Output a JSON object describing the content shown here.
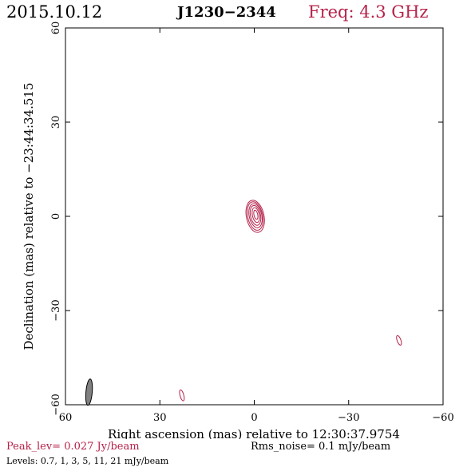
{
  "header": {
    "date": "2015.10.12",
    "source": "J1230−2344",
    "freq": "Freq: 4.3 GHz"
  },
  "footer": {
    "peak": "Peak_lev=  0.027 Jy/beam",
    "rms": "Rms_noise=  0.1 mJy/beam",
    "levels": "Levels: 0.7,    1,    3,    5,   11,   21 mJy/beam"
  },
  "colors": {
    "contour": "#b5224a",
    "beam": "#808080",
    "axes": "#000000"
  },
  "chart_data": {
    "type": "contour",
    "title": "J1230−2344",
    "xlabel": "Right ascension (mas) relative to 12:30:37.9754",
    "ylabel": "Declination (mas) relative to −23:44:34.515",
    "xlim": [
      60,
      -60
    ],
    "ylim": [
      -60,
      60
    ],
    "xticks": [
      60,
      30,
      0,
      -30,
      -60
    ],
    "yticks": [
      -60,
      -30,
      0,
      30,
      60
    ],
    "xtick_labels": [
      "60",
      "30",
      "0",
      "−30",
      "−60"
    ],
    "ytick_labels": [
      "−60",
      "−30",
      "0",
      "30",
      "60"
    ],
    "peak_jy_per_beam": 0.027,
    "rms_mjy_per_beam": 0.1,
    "levels_mjy_per_beam": [
      0.7,
      1,
      3,
      5,
      11,
      21
    ],
    "components": [
      {
        "name": "core",
        "x": -0.3,
        "y": 0.0,
        "contours": [
          {
            "level": 0.7,
            "rx": 2.8,
            "ry": 5.2,
            "dx": 0.0,
            "dy": 0.0,
            "angle": -12
          },
          {
            "level": 1,
            "rx": 2.4,
            "ry": 4.6,
            "dx": 0.0,
            "dy": 0.1,
            "angle": -12
          },
          {
            "level": 3,
            "rx": 2.0,
            "ry": 3.9,
            "dx": -0.1,
            "dy": 0.2,
            "angle": -12
          },
          {
            "level": 5,
            "rx": 1.6,
            "ry": 3.2,
            "dx": -0.1,
            "dy": 0.3,
            "angle": -12
          },
          {
            "level": 11,
            "rx": 1.1,
            "ry": 2.4,
            "dx": -0.2,
            "dy": 0.4,
            "angle": -12
          },
          {
            "level": 21,
            "rx": 0.6,
            "ry": 1.5,
            "dx": -0.2,
            "dy": 0.5,
            "angle": -12
          }
        ]
      },
      {
        "name": "blob-se",
        "x": -46.0,
        "y": -39.5,
        "contours": [
          {
            "level": 0.7,
            "rx": 0.6,
            "ry": 1.6,
            "dx": 0,
            "dy": 0,
            "angle": -20
          }
        ]
      },
      {
        "name": "blob-s",
        "x": 23.0,
        "y": -57.0,
        "contours": [
          {
            "level": 0.7,
            "rx": 0.6,
            "ry": 1.8,
            "dx": 0,
            "dy": 0,
            "angle": -15
          }
        ]
      }
    ],
    "beam": {
      "x": 52.5,
      "y": -56.0,
      "major_mas": 4.2,
      "minor_mas": 2.0,
      "pa_deg": 5
    }
  }
}
